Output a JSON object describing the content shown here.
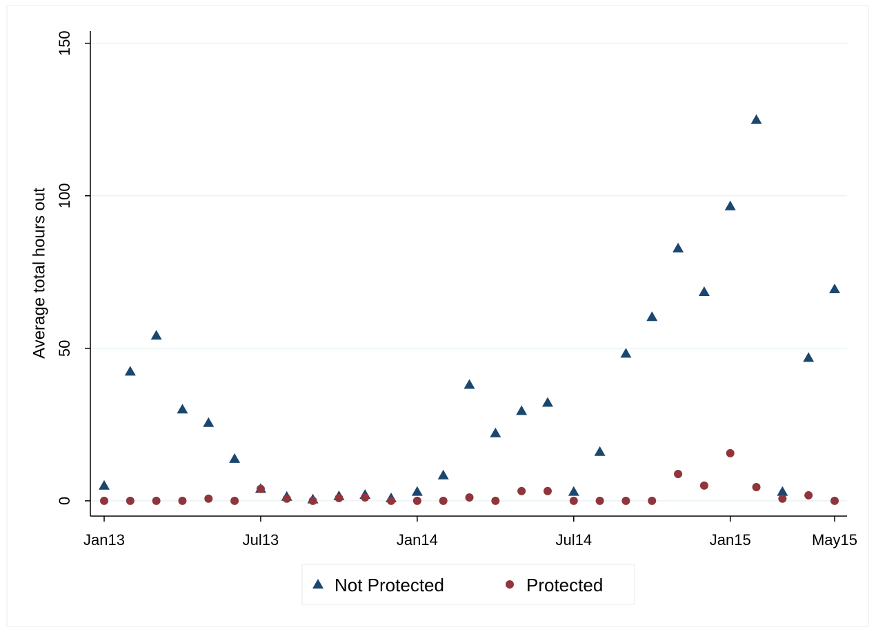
{
  "chart_data": {
    "type": "scatter",
    "ylabel": "Average total hours out",
    "categories": [
      "Jan13",
      null,
      null,
      null,
      null,
      null,
      "Jul13",
      null,
      null,
      null,
      null,
      null,
      "Jan14",
      null,
      null,
      null,
      null,
      null,
      "Jul14",
      null,
      null,
      null,
      null,
      null,
      "Jan15",
      null,
      null,
      null,
      "May15"
    ],
    "series": [
      {
        "name": "Not Protected",
        "color": "#1a476f",
        "marker": "triangle",
        "values": [
          5,
          42.4,
          54.2,
          30,
          25.6,
          13.8,
          4,
          1.4,
          0.5,
          1.6,
          2,
          0.9,
          3,
          8.4,
          38.1,
          22.2,
          29.5,
          32.2,
          3,
          16.1,
          48.3,
          60.3,
          82.8,
          68.5,
          96.6,
          124.9,
          3,
          46.9,
          69.4
        ]
      },
      {
        "name": "Protected",
        "color": "#90353b",
        "marker": "circle",
        "values": [
          0,
          0,
          0,
          0,
          0.7,
          0,
          3.9,
          0.7,
          0,
          0.9,
          1.1,
          0,
          0,
          0,
          1.1,
          0,
          3.2,
          3.2,
          0,
          0,
          0,
          0,
          8.8,
          5,
          15.6,
          4.5,
          0.7,
          1.8,
          0
        ]
      }
    ],
    "ylim": [
      -5,
      154
    ],
    "yticks": [
      0,
      50,
      100,
      150
    ],
    "grid": true,
    "legend": "bottom"
  }
}
